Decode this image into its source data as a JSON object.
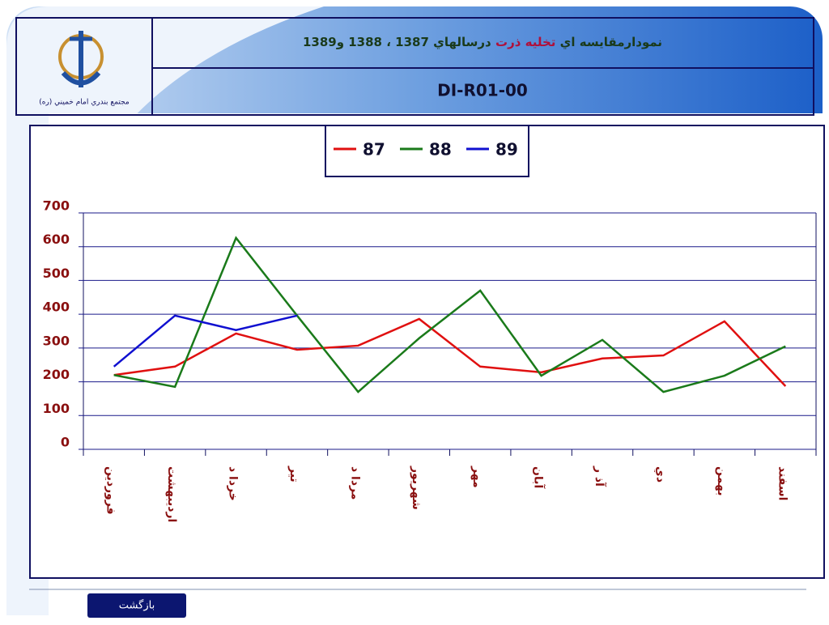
{
  "header": {
    "caption": "مجتمع بندري امام خميني (ره)",
    "code": "DI-R01-00",
    "title_parts": [
      {
        "text": "نمودارمقايسه اي",
        "color": "#1a3a1a"
      },
      {
        "text": "تخليه ذرت",
        "color": "#b0103a"
      },
      {
        "text": "درسالهاي 1387 ، 1388 و1389",
        "color": "#1a3a1a"
      }
    ]
  },
  "chart_data": {
    "type": "line",
    "categories": [
      "فروردين",
      "ارديبهشت",
      "خردا د",
      "تير",
      "مردا د",
      "شهريور",
      "مهر",
      "آبان",
      "آذ ر",
      "دي",
      "بهمن",
      "اسفند"
    ],
    "series": [
      {
        "name": "87",
        "color": "#e01010",
        "values": [
          220,
          245,
          343,
          295,
          307,
          386,
          245,
          228,
          269,
          278,
          379,
          187
        ]
      },
      {
        "name": "88",
        "color": "#1a7a1a",
        "values": [
          220,
          185,
          626,
          396,
          170,
          329,
          470,
          218,
          324,
          170,
          218,
          305
        ]
      },
      {
        "name": "89",
        "color": "#1010d0",
        "values": [
          245,
          396,
          353,
          396,
          null,
          null,
          null,
          null,
          null,
          null,
          null,
          null
        ]
      }
    ],
    "ylim": [
      0,
      700
    ],
    "yticks": [
      0,
      100,
      200,
      300,
      400,
      500,
      600,
      700
    ],
    "grid": true
  },
  "footer": {
    "button": "بازگشت"
  }
}
